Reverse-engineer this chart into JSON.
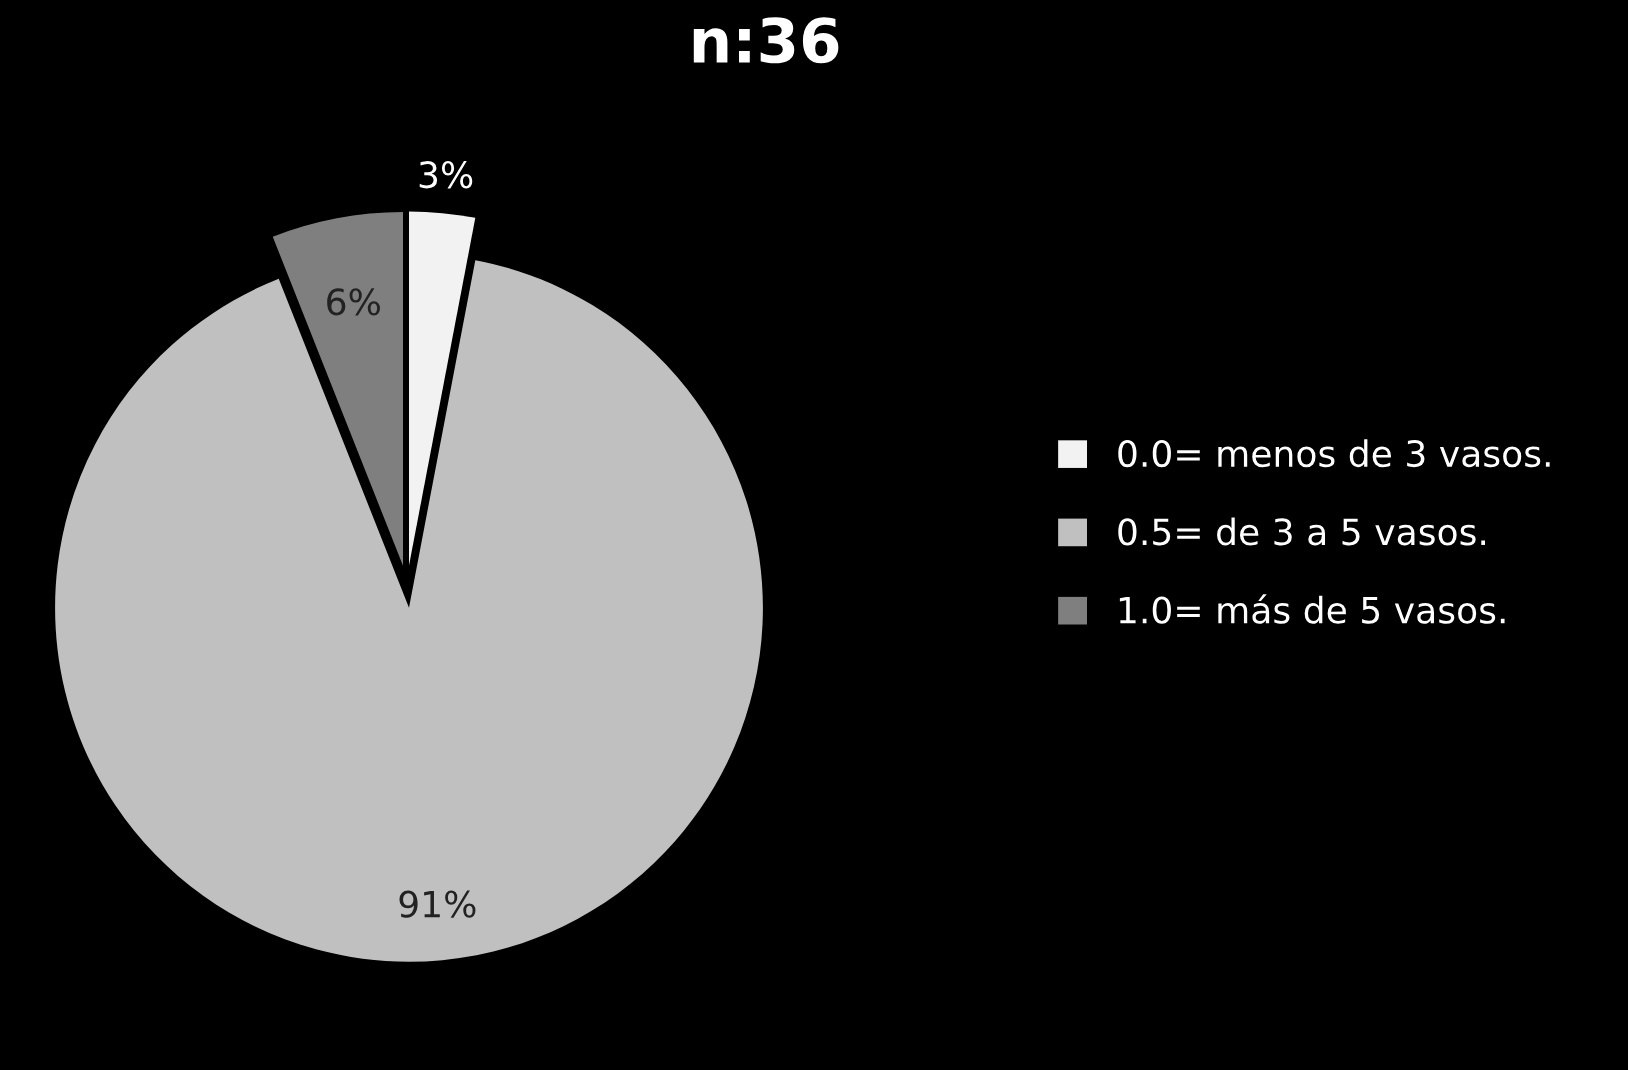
{
  "chart_data": {
    "type": "pie",
    "title": "n:36",
    "categories": [
      "0.0= menos de 3 vasos.",
      "0.5= de 3 a 5 vasos.",
      "1.0= más de 5 vasos."
    ],
    "values": [
      3,
      91,
      6
    ],
    "value_labels": [
      "3%",
      "91%",
      "6%"
    ],
    "colors": [
      "#f2f2f2",
      "#c0c0c0",
      "#7f7f7f"
    ],
    "legend": "right"
  }
}
